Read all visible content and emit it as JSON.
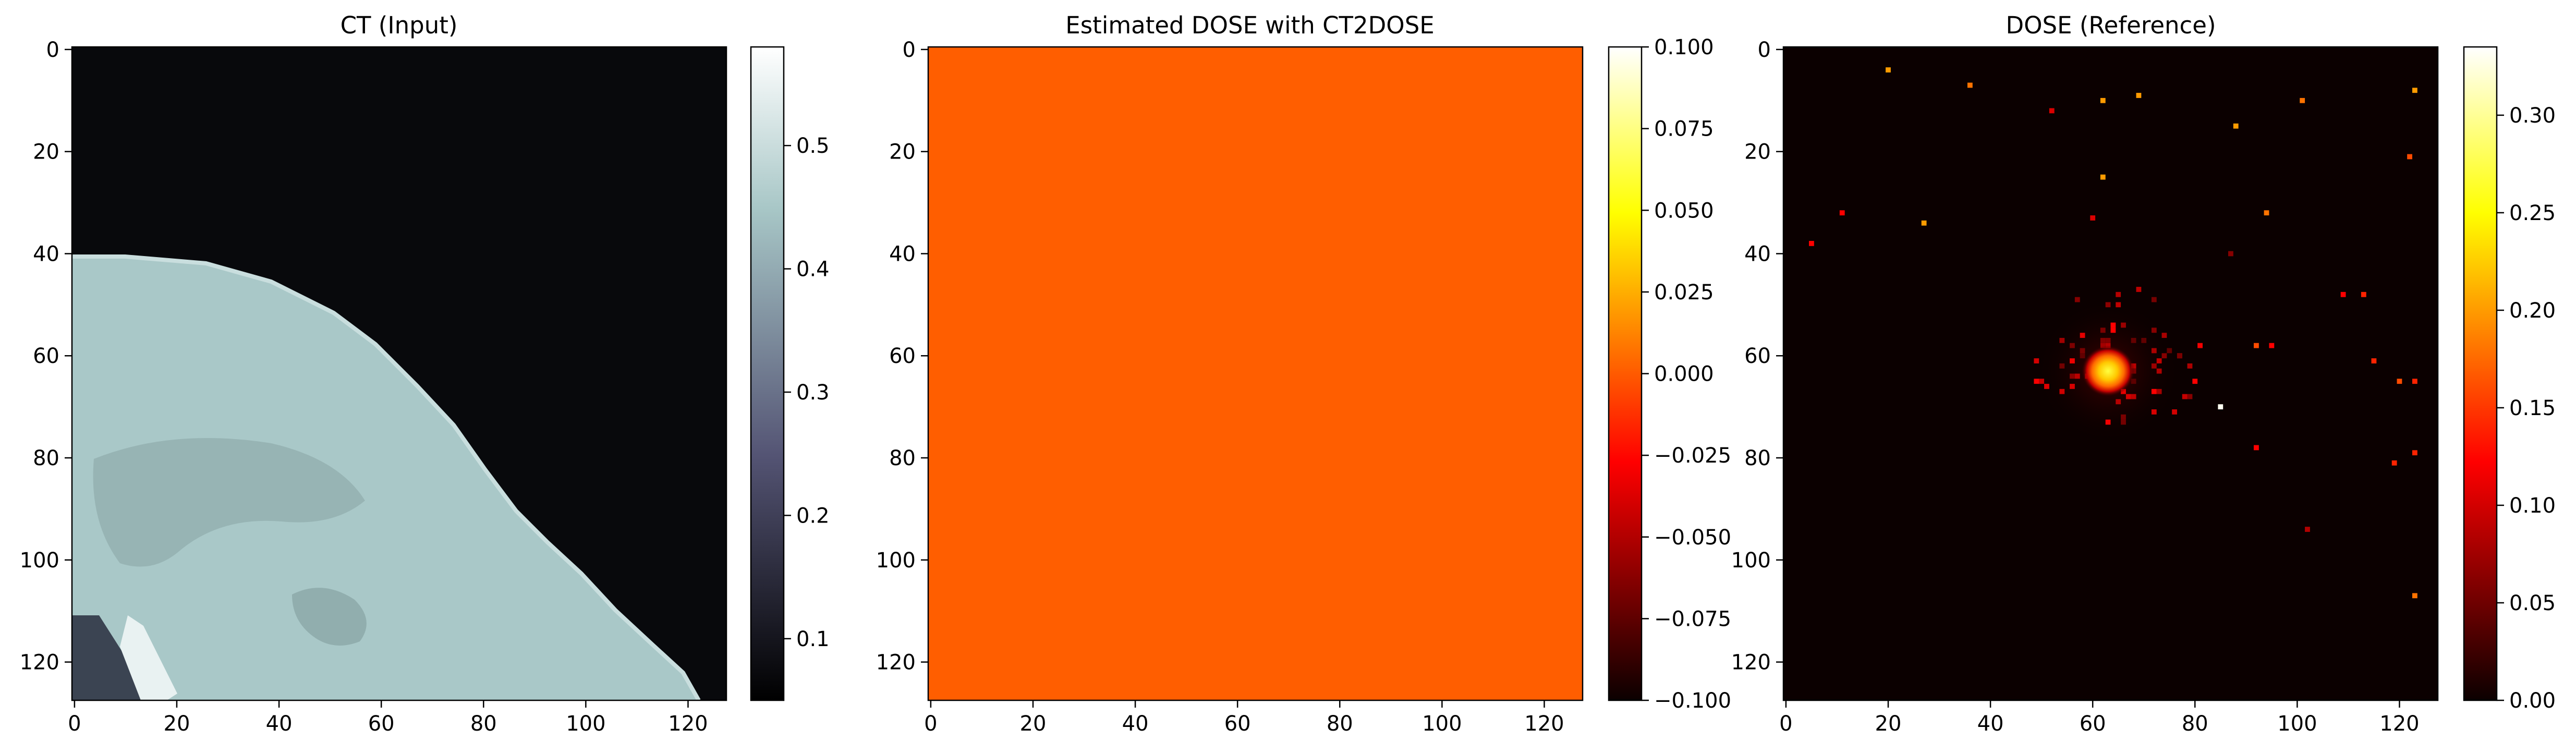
{
  "chart_data": [
    {
      "type": "heatmap",
      "title": "CT (Input)",
      "colormap": "bone",
      "xlim": [
        0,
        127
      ],
      "ylim": [
        127,
        0
      ],
      "xticks": [
        0,
        20,
        40,
        60,
        80,
        100,
        120
      ],
      "yticks": [
        0,
        20,
        40,
        60,
        80,
        100,
        120
      ],
      "colorbar": {
        "min": 0.05,
        "max": 0.58,
        "ticks": [
          0.1,
          0.2,
          0.3,
          0.4,
          0.5
        ],
        "tick_labels": [
          "0.1",
          "0.2",
          "0.3",
          "0.4",
          "0.5"
        ]
      },
      "content": "sagittal head CT slice: dark air background, bright skull/tissue region in lower-left below a curved boundary"
    },
    {
      "type": "heatmap",
      "title": "Estimated DOSE with CT2DOSE",
      "colormap": "hot",
      "xlim": [
        0,
        127
      ],
      "ylim": [
        127,
        0
      ],
      "xticks": [
        0,
        20,
        40,
        60,
        80,
        100,
        120
      ],
      "yticks": [
        0,
        20,
        40,
        60,
        80,
        100,
        120
      ],
      "uniform_value": 0.0,
      "colorbar": {
        "min": -0.1,
        "max": 0.1,
        "ticks": [
          0.1,
          0.075,
          0.05,
          0.025,
          0.0,
          -0.025,
          -0.05,
          -0.075,
          -0.1
        ],
        "tick_labels": [
          "0.100",
          "0.075",
          "0.050",
          "0.025",
          "0.000",
          "−0.025",
          "−0.050",
          "−0.075",
          "−0.100"
        ]
      }
    },
    {
      "type": "heatmap",
      "title": "DOSE (Reference)",
      "colormap": "hot",
      "xlim": [
        0,
        127
      ],
      "ylim": [
        127,
        0
      ],
      "xticks": [
        0,
        20,
        40,
        60,
        80,
        100,
        120
      ],
      "yticks": [
        0,
        20,
        40,
        60,
        80,
        100,
        120
      ],
      "colorbar": {
        "min": 0.0,
        "max": 0.335,
        "ticks": [
          0.0,
          0.05,
          0.1,
          0.15,
          0.2,
          0.25,
          0.3
        ],
        "tick_labels": [
          "0.00",
          "0.05",
          "0.10",
          "0.15",
          "0.20",
          "0.25",
          "0.30"
        ]
      },
      "hotspot": {
        "x": 63,
        "y": 63,
        "peak": 0.33
      },
      "sparse_points": [
        {
          "x": 20,
          "y": 4,
          "v": 0.2
        },
        {
          "x": 36,
          "y": 7,
          "v": 0.18
        },
        {
          "x": 62,
          "y": 10,
          "v": 0.2
        },
        {
          "x": 69,
          "y": 9,
          "v": 0.2
        },
        {
          "x": 101,
          "y": 10,
          "v": 0.18
        },
        {
          "x": 123,
          "y": 8,
          "v": 0.2
        },
        {
          "x": 52,
          "y": 12,
          "v": 0.1
        },
        {
          "x": 88,
          "y": 15,
          "v": 0.2
        },
        {
          "x": 122,
          "y": 21,
          "v": 0.16
        },
        {
          "x": 62,
          "y": 25,
          "v": 0.2
        },
        {
          "x": 11,
          "y": 32,
          "v": 0.12
        },
        {
          "x": 27,
          "y": 34,
          "v": 0.2
        },
        {
          "x": 60,
          "y": 33,
          "v": 0.1
        },
        {
          "x": 94,
          "y": 32,
          "v": 0.18
        },
        {
          "x": 5,
          "y": 38,
          "v": 0.12
        },
        {
          "x": 87,
          "y": 40,
          "v": 0.06
        },
        {
          "x": 109,
          "y": 48,
          "v": 0.12
        },
        {
          "x": 113,
          "y": 48,
          "v": 0.14
        },
        {
          "x": 115,
          "y": 61,
          "v": 0.14
        },
        {
          "x": 120,
          "y": 65,
          "v": 0.16
        },
        {
          "x": 123,
          "y": 65,
          "v": 0.14
        },
        {
          "x": 85,
          "y": 70,
          "v": 0.33
        },
        {
          "x": 95,
          "y": 58,
          "v": 0.12
        },
        {
          "x": 92,
          "y": 58,
          "v": 0.16
        },
        {
          "x": 92,
          "y": 78,
          "v": 0.12
        },
        {
          "x": 119,
          "y": 81,
          "v": 0.14
        },
        {
          "x": 123,
          "y": 79,
          "v": 0.14
        },
        {
          "x": 102,
          "y": 94,
          "v": 0.08
        },
        {
          "x": 123,
          "y": 107,
          "v": 0.18
        }
      ]
    }
  ]
}
